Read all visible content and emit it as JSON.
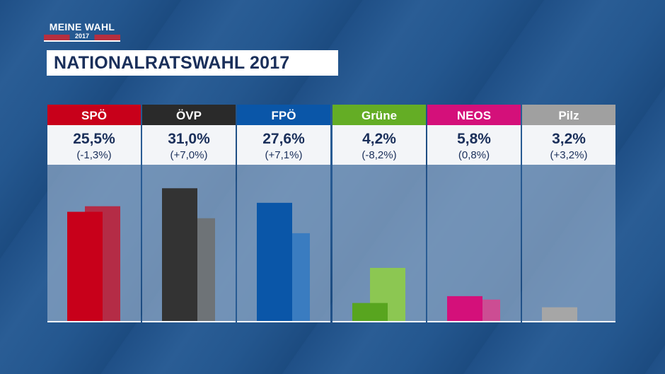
{
  "logo": {
    "line1": "MEINE WAHL",
    "line2": "2017"
  },
  "title": "NATIONALRATSWAHL 2017",
  "chart_data": {
    "type": "bar",
    "categories": [
      "SPÖ",
      "ÖVP",
      "FPÖ",
      "Grüne",
      "NEOS",
      "Pilz"
    ],
    "series": [
      {
        "values": [
          25.5,
          31.0,
          27.6,
          4.2,
          5.8,
          3.2
        ]
      },
      {
        "values": [
          26.8,
          24.0,
          20.5,
          12.4,
          5.0,
          0.0
        ]
      }
    ],
    "value_labels": [
      "25,5%",
      "31,0%",
      "27,6%",
      "4,2%",
      "5,8%",
      "3,2%"
    ],
    "change_labels": [
      "(-1,3%)",
      "(+7,0%)",
      "(+7,1%)",
      "(-8,2%)",
      "(0,8%)",
      "(+3,2%)"
    ],
    "colors": {
      "current": [
        "#c8001a",
        "#333333",
        "#0a56a8",
        "#58a51f",
        "#d4107a",
        "#a6a6a6"
      ],
      "previous": [
        "#b42c46",
        "#6e7377",
        "#3a7cc0",
        "#8cc752",
        "#cc4d93",
        "#a6a6a6"
      ],
      "header": [
        "#c8001a",
        "#2a2a2a",
        "#0a56a8",
        "#64ad25",
        "#d4107a",
        "#a0a0a0"
      ]
    },
    "ylim": [
      0,
      36
    ],
    "grid": false,
    "legend": "none"
  }
}
